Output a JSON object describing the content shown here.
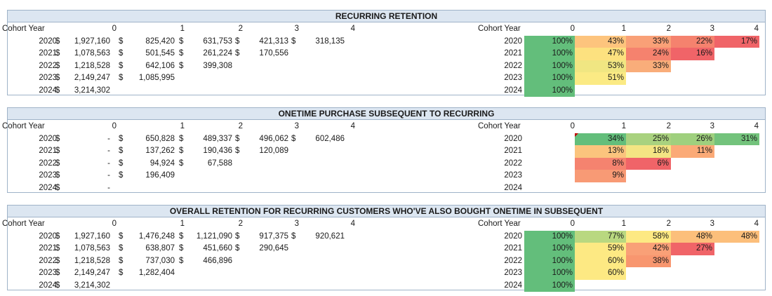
{
  "colors": {
    "header_bg": "#dce6f1",
    "border": "#9fb3c8",
    "heat_low": "#f8696b",
    "heat_mid": "#ffeb84",
    "heat_high": "#63be7b"
  },
  "sections": [
    {
      "title": "RECURRING RETENTION",
      "left_header": [
        "Cohort Year",
        "0",
        "1",
        "2",
        "3",
        "4"
      ],
      "rows": [
        {
          "year": "2020",
          "cells": [
            {
              "cur": "$",
              "v": "1,927,160"
            },
            {
              "cur": "$",
              "v": "825,420"
            },
            {
              "cur": "$",
              "v": "631,753"
            },
            {
              "cur": "$",
              "v": "421,313"
            },
            {
              "cur": "$",
              "v": "318,135"
            }
          ]
        },
        {
          "year": "2021",
          "cells": [
            {
              "cur": "$",
              "v": "1,078,563"
            },
            {
              "cur": "$",
              "v": "501,545"
            },
            {
              "cur": "$",
              "v": "261,224"
            },
            {
              "cur": "$",
              "v": "170,556"
            }
          ]
        },
        {
          "year": "2022",
          "cells": [
            {
              "cur": "$",
              "v": "1,218,528"
            },
            {
              "cur": "$",
              "v": "642,106"
            },
            {
              "cur": "$",
              "v": "399,308"
            }
          ]
        },
        {
          "year": "2023",
          "cells": [
            {
              "cur": "$",
              "v": "2,149,247"
            },
            {
              "cur": "$",
              "v": "1,085,995"
            }
          ]
        },
        {
          "year": "2024",
          "cells": [
            {
              "cur": "$",
              "v": "3,214,302"
            }
          ]
        }
      ],
      "right_header": [
        "Cohort Year",
        "0",
        "1",
        "2",
        "3",
        "4"
      ],
      "pct_rows": [
        {
          "year": "2020",
          "cells": [
            {
              "t": "100%",
              "c": "#63be7b"
            },
            {
              "t": "43%",
              "c": "#fdc47d"
            },
            {
              "t": "33%",
              "c": "#f9a077"
            },
            {
              "t": "22%",
              "c": "#f5826e"
            },
            {
              "t": "17%",
              "c": "#f06468"
            }
          ]
        },
        {
          "year": "2021",
          "cells": [
            {
              "t": "100%",
              "c": "#63be7b"
            },
            {
              "t": "47%",
              "c": "#fde17f"
            },
            {
              "t": "24%",
              "c": "#f5826e"
            },
            {
              "t": "16%",
              "c": "#f06468"
            }
          ]
        },
        {
          "year": "2022",
          "cells": [
            {
              "t": "100%",
              "c": "#63be7b"
            },
            {
              "t": "53%",
              "c": "#f0e682"
            },
            {
              "t": "33%",
              "c": "#f9ad7a"
            }
          ]
        },
        {
          "year": "2023",
          "cells": [
            {
              "t": "100%",
              "c": "#63be7b"
            },
            {
              "t": "51%",
              "c": "#fbea84"
            }
          ]
        },
        {
          "year": "2024",
          "cells": [
            {
              "t": "100%",
              "c": "#63be7b"
            }
          ]
        }
      ]
    },
    {
      "title": "ONETIME PURCHASE SUBSEQUENT TO RECURRING",
      "left_header": [
        "Cohort Year",
        "0",
        "1",
        "2",
        "3",
        "4"
      ],
      "rows": [
        {
          "year": "2020",
          "cells": [
            {
              "cur": "$",
              "v": "-"
            },
            {
              "cur": "$",
              "v": "650,828"
            },
            {
              "cur": "$",
              "v": "489,337"
            },
            {
              "cur": "$",
              "v": "496,062"
            },
            {
              "cur": "$",
              "v": "602,486"
            }
          ]
        },
        {
          "year": "2021",
          "cells": [
            {
              "cur": "$",
              "v": "-"
            },
            {
              "cur": "$",
              "v": "137,262"
            },
            {
              "cur": "$",
              "v": "190,436"
            },
            {
              "cur": "$",
              "v": "120,089"
            }
          ]
        },
        {
          "year": "2022",
          "cells": [
            {
              "cur": "$",
              "v": "-"
            },
            {
              "cur": "$",
              "v": "94,924"
            },
            {
              "cur": "$",
              "v": "67,588"
            }
          ]
        },
        {
          "year": "2023",
          "cells": [
            {
              "cur": "$",
              "v": "-"
            },
            {
              "cur": "$",
              "v": "196,409"
            }
          ]
        },
        {
          "year": "2024",
          "cells": [
            {
              "cur": "$",
              "v": "-"
            }
          ]
        }
      ],
      "right_header": [
        "Cohort Year",
        "0",
        "1",
        "2",
        "3",
        "4"
      ],
      "pct_rows": [
        {
          "year": "2020",
          "cells": [
            {
              "t": "",
              "c": ""
            },
            {
              "t": "34%",
              "c": "#63be7b"
            },
            {
              "t": "25%",
              "c": "#a9d27f"
            },
            {
              "t": "26%",
              "c": "#9fd07e"
            },
            {
              "t": "31%",
              "c": "#73c37c"
            }
          ]
        },
        {
          "year": "2021",
          "cells": [
            {
              "t": "",
              "c": ""
            },
            {
              "t": "13%",
              "c": "#fbc47d"
            },
            {
              "t": "18%",
              "c": "#f4e583"
            },
            {
              "t": "11%",
              "c": "#fbaa77"
            }
          ]
        },
        {
          "year": "2022",
          "cells": [
            {
              "t": "",
              "c": ""
            },
            {
              "t": "8%",
              "c": "#f5836f"
            },
            {
              "t": "6%",
              "c": "#f06468"
            }
          ]
        },
        {
          "year": "2023",
          "cells": [
            {
              "t": "",
              "c": ""
            },
            {
              "t": "9%",
              "c": "#f89a75"
            }
          ]
        },
        {
          "year": "2024",
          "cells": [
            {
              "t": "",
              "c": ""
            }
          ]
        }
      ]
    },
    {
      "title": "OVERALL RETENTION FOR RECURRING CUSTOMERS WHO'VE ALSO BOUGHT ONETIME IN SUBSEQUENT",
      "left_header": [
        "Cohort Year",
        "0",
        "1",
        "2",
        "3",
        "4"
      ],
      "rows": [
        {
          "year": "2020",
          "cells": [
            {
              "cur": "$",
              "v": "1,927,160"
            },
            {
              "cur": "$",
              "v": "1,476,248"
            },
            {
              "cur": "$",
              "v": "1,121,090"
            },
            {
              "cur": "$",
              "v": "917,375"
            },
            {
              "cur": "$",
              "v": "920,621"
            }
          ]
        },
        {
          "year": "2021",
          "cells": [
            {
              "cur": "$",
              "v": "1,078,563"
            },
            {
              "cur": "$",
              "v": "638,807"
            },
            {
              "cur": "$",
              "v": "451,660"
            },
            {
              "cur": "$",
              "v": "290,645"
            }
          ]
        },
        {
          "year": "2022",
          "cells": [
            {
              "cur": "$",
              "v": "1,218,528"
            },
            {
              "cur": "$",
              "v": "737,030"
            },
            {
              "cur": "$",
              "v": "466,896"
            }
          ]
        },
        {
          "year": "2023",
          "cells": [
            {
              "cur": "$",
              "v": "2,149,247"
            },
            {
              "cur": "$",
              "v": "1,282,404"
            }
          ]
        },
        {
          "year": "2024",
          "cells": [
            {
              "cur": "$",
              "v": "3,214,302"
            }
          ]
        }
      ],
      "right_header": [
        "Cohort Year",
        "0",
        "1",
        "2",
        "3",
        "4"
      ],
      "pct_rows": [
        {
          "year": "2020",
          "cells": [
            {
              "t": "100%",
              "c": "#63be7b"
            },
            {
              "t": "77%",
              "c": "#b9d880"
            },
            {
              "t": "58%",
              "c": "#fde983"
            },
            {
              "t": "48%",
              "c": "#fcbf7b"
            },
            {
              "t": "48%",
              "c": "#fcbf7b"
            }
          ]
        },
        {
          "year": "2021",
          "cells": [
            {
              "t": "100%",
              "c": "#63be7b"
            },
            {
              "t": "59%",
              "c": "#fde983"
            },
            {
              "t": "42%",
              "c": "#f9a077"
            },
            {
              "t": "27%",
              "c": "#f06468"
            }
          ]
        },
        {
          "year": "2022",
          "cells": [
            {
              "t": "100%",
              "c": "#63be7b"
            },
            {
              "t": "60%",
              "c": "#fde983"
            },
            {
              "t": "38%",
              "c": "#f8966f"
            }
          ]
        },
        {
          "year": "2023",
          "cells": [
            {
              "t": "100%",
              "c": "#63be7b"
            },
            {
              "t": "60%",
              "c": "#fde983"
            }
          ]
        },
        {
          "year": "2024",
          "cells": [
            {
              "t": "100%",
              "c": "#63be7b"
            }
          ]
        }
      ]
    }
  ]
}
